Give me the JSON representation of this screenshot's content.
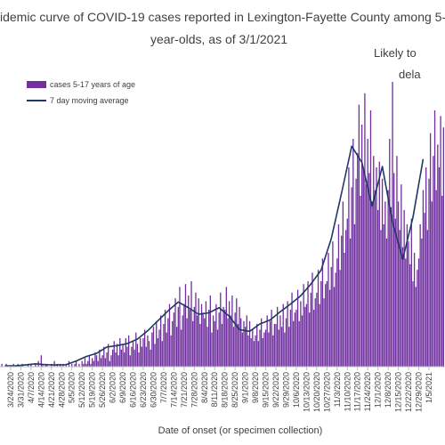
{
  "chart_data": {
    "type": "bar",
    "title": "idemic curve of COVID-19 cases reported in Lexington-Fayette County among 5-",
    "subtitle": "year-olds, as of 3/1/2021",
    "annotation": [
      "Likely to",
      "dela"
    ],
    "x_label": "Date of onset (or specimen collection)",
    "xlim": [
      -0.3,
      305
    ],
    "ylim": [
      0,
      100
    ],
    "grid": false,
    "xticks": [
      {
        "value": 7,
        "label": "3/24/2020"
      },
      {
        "value": 14,
        "label": "3/31/2020"
      },
      {
        "value": 21,
        "label": "4/7/2020"
      },
      {
        "value": 28,
        "label": "4/14/2020"
      },
      {
        "value": 35,
        "label": "4/21/2020"
      },
      {
        "value": 42,
        "label": "4/28/2020"
      },
      {
        "value": 49,
        "label": "5/5/2020"
      },
      {
        "value": 56,
        "label": "5/12/2020"
      },
      {
        "value": 63,
        "label": "5/19/2020"
      },
      {
        "value": 70,
        "label": "5/26/2020"
      },
      {
        "value": 77,
        "label": "6/2/2020"
      },
      {
        "value": 84,
        "label": "6/9/2020"
      },
      {
        "value": 91,
        "label": "6/16/2020"
      },
      {
        "value": 98,
        "label": "6/23/2020"
      },
      {
        "value": 105,
        "label": "6/30/2020"
      },
      {
        "value": 112,
        "label": "7/7/2020"
      },
      {
        "value": 119,
        "label": "7/14/2020"
      },
      {
        "value": 126,
        "label": "7/21/2020"
      },
      {
        "value": 133,
        "label": "7/28/2020"
      },
      {
        "value": 140,
        "label": "8/4/2020"
      },
      {
        "value": 147,
        "label": "8/11/2020"
      },
      {
        "value": 154,
        "label": "8/18/2020"
      },
      {
        "value": 161,
        "label": "8/25/2020"
      },
      {
        "value": 168,
        "label": "9/1/2020"
      },
      {
        "value": 175,
        "label": "9/8/2020"
      },
      {
        "value": 182,
        "label": "9/15/2020"
      },
      {
        "value": 189,
        "label": "9/22/2020"
      },
      {
        "value": 196,
        "label": "9/29/2020"
      },
      {
        "value": 203,
        "label": "10/6/2020"
      },
      {
        "value": 210,
        "label": "10/13/2020"
      },
      {
        "value": 217,
        "label": "10/20/2020"
      },
      {
        "value": 224,
        "label": "10/27/2020"
      },
      {
        "value": 231,
        "label": "11/3/2020"
      },
      {
        "value": 238,
        "label": "11/10/2020"
      },
      {
        "value": 245,
        "label": "11/17/2020"
      },
      {
        "value": 252,
        "label": "11/24/2020"
      },
      {
        "value": 259,
        "label": "12/1/2020"
      },
      {
        "value": 266,
        "label": "12/8/2020"
      },
      {
        "value": 273,
        "label": "12/15/2020"
      },
      {
        "value": 280,
        "label": "12/22/2020"
      },
      {
        "value": 287,
        "label": "12/29/2020"
      },
      {
        "value": 294,
        "label": "1/5/2021"
      }
    ],
    "x": [
      0,
      1,
      2,
      3,
      4,
      5,
      6,
      7,
      8,
      9,
      10,
      11,
      12,
      13,
      14,
      15,
      16,
      17,
      18,
      19,
      20,
      21,
      22,
      23,
      24,
      25,
      26,
      27,
      28,
      29,
      30,
      31,
      32,
      33,
      34,
      35,
      36,
      37,
      38,
      39,
      40,
      41,
      42,
      43,
      44,
      45,
      46,
      47,
      48,
      49,
      50,
      51,
      52,
      53,
      54,
      55,
      56,
      57,
      58,
      59,
      60,
      61,
      62,
      63,
      64,
      65,
      66,
      67,
      68,
      69,
      70,
      71,
      72,
      73,
      74,
      75,
      76,
      77,
      78,
      79,
      80,
      81,
      82,
      83,
      84,
      85,
      86,
      87,
      88,
      89,
      90,
      91,
      92,
      93,
      94,
      95,
      96,
      97,
      98,
      99,
      100,
      101,
      102,
      103,
      104,
      105,
      106,
      107,
      108,
      109,
      110,
      111,
      112,
      113,
      114,
      115,
      116,
      117,
      118,
      119,
      120,
      121,
      122,
      123,
      124,
      125,
      126,
      127,
      128,
      129,
      130,
      131,
      132,
      133,
      134,
      135,
      136,
      137,
      138,
      139,
      140,
      141,
      142,
      143,
      144,
      145,
      146,
      147,
      148,
      149,
      150,
      151,
      152,
      153,
      154,
      155,
      156,
      157,
      158,
      159,
      160,
      161,
      162,
      163,
      164,
      165,
      166,
      167,
      168,
      169,
      170,
      171,
      172,
      173,
      174,
      175,
      176,
      177,
      178,
      179,
      180,
      181,
      182,
      183,
      184,
      185,
      186,
      187,
      188,
      189,
      190,
      191,
      192,
      193,
      194,
      195,
      196,
      197,
      198,
      199,
      200,
      201,
      202,
      203,
      204,
      205,
      206,
      207,
      208,
      209,
      210,
      211,
      212,
      213,
      214,
      215,
      216,
      217,
      218,
      219,
      220,
      221,
      222,
      223,
      224,
      225,
      226,
      227,
      228,
      229,
      230,
      231,
      232,
      233,
      234,
      235,
      236,
      237,
      238,
      239,
      240,
      241,
      242,
      243,
      244,
      245,
      246,
      247,
      248,
      249,
      250,
      251,
      252,
      253,
      254,
      255,
      256,
      257,
      258,
      259,
      260,
      261,
      262,
      263,
      264,
      265,
      266,
      267,
      268,
      269,
      270,
      271,
      272,
      273,
      274,
      275,
      276,
      277,
      278,
      279,
      280,
      281,
      282,
      283,
      284,
      285,
      286,
      287,
      288,
      289,
      290,
      291,
      292,
      293,
      294,
      295,
      296,
      297,
      298,
      299,
      300,
      301,
      302,
      303,
      304
    ],
    "series": [
      {
        "name": "cases 5-17 years of age",
        "type": "bar",
        "color": "#7030a0",
        "values": [
          0,
          1,
          0,
          0,
          1,
          0,
          0,
          0,
          0,
          1,
          0,
          0,
          1,
          0,
          0,
          1,
          0,
          0,
          0,
          1,
          0,
          1,
          0,
          0,
          1,
          0,
          2,
          0,
          4,
          1,
          0,
          1,
          1,
          0,
          0,
          1,
          0,
          2,
          0,
          1,
          0,
          1,
          0,
          1,
          0,
          1,
          0,
          2,
          0,
          1,
          0,
          1,
          2,
          0,
          1,
          0,
          2,
          1,
          3,
          1,
          2,
          4,
          1,
          3,
          2,
          5,
          4,
          2,
          6,
          3,
          4,
          7,
          3,
          5,
          8,
          2,
          4,
          6,
          9,
          5,
          8,
          4,
          10,
          6,
          8,
          5,
          10,
          7,
          11,
          4,
          7,
          9,
          6,
          12,
          8,
          5,
          10,
          7,
          10,
          13,
          7,
          11,
          9,
          6,
          12,
          14,
          8,
          16,
          10,
          13,
          18,
          9,
          15,
          20,
          12,
          17,
          22,
          11,
          16,
          19,
          24,
          14,
          21,
          28,
          13,
          18,
          22,
          29,
          17,
          25,
          20,
          30,
          16,
          21,
          26,
          18,
          24,
          15,
          22,
          19,
          17,
          23,
          14,
          20,
          25,
          12,
          18,
          16,
          22,
          13,
          19,
          26,
          15,
          21,
          20,
          28,
          17,
          23,
          18,
          25,
          14,
          19,
          24,
          15,
          21,
          17,
          12,
          16,
          14,
          18,
          11,
          16,
          10,
          13,
          9,
          11,
          15,
          9,
          13,
          17,
          10,
          12,
          13,
          18,
          12,
          16,
          20,
          11,
          15,
          15,
          21,
          13,
          18,
          14,
          22,
          12,
          17,
          23,
          14,
          20,
          26,
          16,
          19,
          20,
          27,
          16,
          23,
          18,
          29,
          21,
          22,
          30,
          19,
          26,
          33,
          20,
          24,
          26,
          34,
          22,
          30,
          38,
          24,
          29,
          30,
          40,
          27,
          35,
          44,
          28,
          33,
          38,
          50,
          34,
          46,
          58,
          40,
          48,
          52,
          70,
          45,
          63,
          80,
          50,
          66,
          75,
          92,
          60,
          85,
          70,
          96,
          64,
          80,
          68,
          90,
          58,
          74,
          62,
          70,
          55,
          72,
          48,
          66,
          50,
          58,
          45,
          62,
          80,
          56,
          100,
          68,
          52,
          74,
          58,
          48,
          64,
          42,
          55,
          38,
          50,
          44,
          36,
          52,
          30,
          40,
          28,
          34,
          38,
          50,
          45,
          62,
          54,
          70,
          48,
          66,
          82,
          58,
          74,
          90,
          62,
          78,
          70,
          88,
          60,
          84
        ]
      },
      {
        "name": "7 day moving average",
        "type": "line",
        "color": "#1f3864",
        "x": [
          3,
          10,
          17,
          24,
          31,
          38,
          45,
          52,
          59,
          66,
          73,
          80,
          87,
          94,
          101,
          108,
          115,
          122,
          129,
          136,
          143,
          150,
          157,
          164,
          171,
          178,
          185,
          192,
          199,
          206,
          213,
          220,
          227,
          234,
          241,
          248,
          255,
          262,
          269,
          276,
          283,
          290
        ],
        "values": [
          0.3,
          0.3,
          0.6,
          1,
          0.7,
          0.6,
          0.7,
          2,
          3.6,
          4.7,
          6.9,
          7.4,
          8.1,
          9.7,
          12.6,
          16.1,
          19.6,
          22.7,
          20.7,
          18.4,
          18.9,
          20.7,
          17.7,
          13,
          12.4,
          15,
          16.4,
          19.3,
          22,
          24.9,
          29,
          33.9,
          45,
          60.9,
          77.4,
          71.7,
          56.3,
          70.3,
          50.7,
          37.7,
          52.4,
          72.9
        ]
      }
    ]
  }
}
